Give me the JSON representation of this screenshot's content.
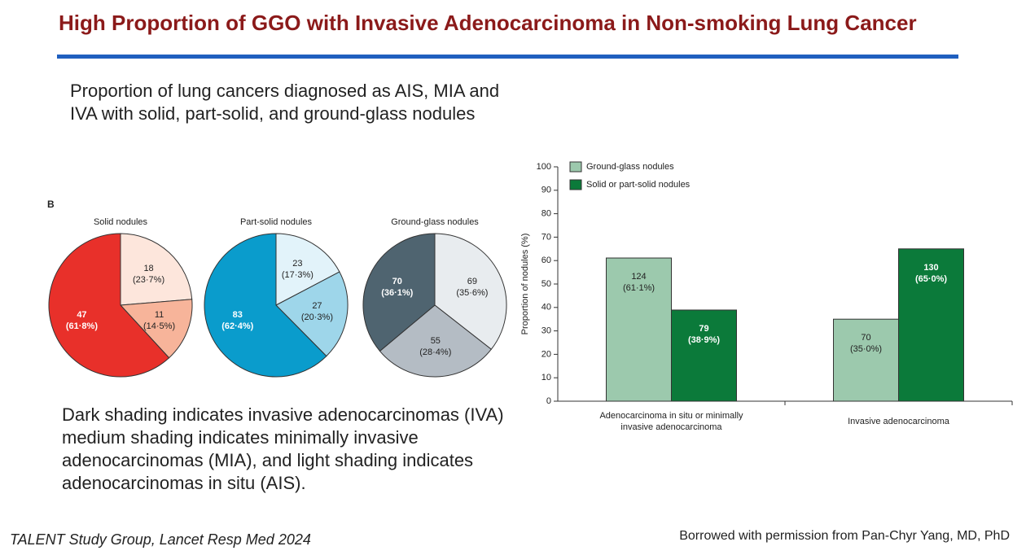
{
  "slide": {
    "title": "High Proportion of GGO with Invasive Adenocarcinoma in Non-smoking Lung Cancer",
    "intro": "Proportion of lung cancers diagnosed as AIS, MIA and IVA with solid, part-solid, and ground-glass nodules",
    "panel": "B",
    "note": "Dark shading indicates invasive adenocarcinomas (IVA) medium shading indicates minimally invasive adenocarcinomas (MIA), and light shading indicates adenocarcinomas in situ (AIS).",
    "citation": "TALENT Study Group, Lancet Resp Med 2024",
    "credit": "Borrowed with permission from Pan-Chyr Yang, MD, PhD"
  },
  "chart_data": [
    {
      "type": "pie",
      "title": "Solid nodules",
      "values": [
        18,
        11,
        47
      ],
      "value_labels": [
        "18 (23·7%)",
        "11 (14·5%)",
        "47 (61·8%)"
      ],
      "colors": [
        "#fde6dc",
        "#f7b49a",
        "#e8302a"
      ]
    },
    {
      "type": "pie",
      "title": "Part-solid nodules",
      "values": [
        23,
        27,
        83
      ],
      "value_labels": [
        "23 (17·3%)",
        "27 (20·3%)",
        "83 (62·4%)"
      ],
      "colors": [
        "#e2f3fa",
        "#9ed6ea",
        "#0a9ccc"
      ]
    },
    {
      "type": "pie",
      "title": "Ground-glass nodules",
      "values": [
        69,
        55,
        70
      ],
      "value_labels": [
        "69 (35·6%)",
        "55 (28·4%)",
        "70 (36·1%)"
      ],
      "colors": [
        "#e8ecef",
        "#b4bcc4",
        "#4f6470"
      ]
    },
    {
      "type": "bar",
      "y_label": "Proportion of nodules (%)",
      "categories": [
        "Adenocarcinoma in situ or minimally invasive adenocarcinoma",
        "Invasive adenocarcinoma"
      ],
      "series": [
        {
          "name": "Ground-glass nodules",
          "color": "#9cc9ad",
          "values": [
            61.1,
            35.0
          ],
          "value_labels": [
            "124 (61·1%)",
            "70 (35·0%)"
          ]
        },
        {
          "name": "Solid or part-solid nodules",
          "color": "#0b7a3a",
          "values": [
            38.9,
            65.0
          ],
          "value_labels": [
            "79 (38·9%)",
            "130 (65·0%)"
          ]
        }
      ],
      "ylim": [
        0,
        100
      ],
      "yticks": [
        0,
        10,
        20,
        30,
        40,
        50,
        60,
        70,
        80,
        90,
        100
      ],
      "legend": "upper left"
    }
  ]
}
